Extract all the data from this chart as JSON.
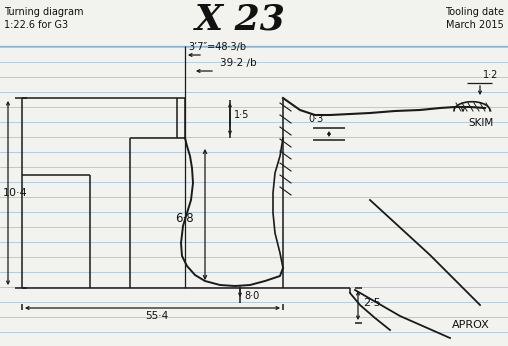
{
  "title": "X 23",
  "top_left_line1": "Turning diagram",
  "top_left_line2": "1:22.6 for G3",
  "top_right_line1": "Tooling date",
  "top_right_line2": "March 2015",
  "dim_37": "3’7″=48·3∕b",
  "dim_392": "39·2 ∕b",
  "dim_12": "1·2",
  "dim_03": "0·3",
  "dim_15": "1·5",
  "dim_68": "6·8",
  "dim_80": "8·0",
  "dim_25": "2·5",
  "dim_104": "10·4",
  "dim_554": "55·4",
  "label_skim": "SKIM",
  "label_aprox": "APROX",
  "bg_color": "#f2f2ee",
  "line_color": "#1a1a1a",
  "blue_line_color": "#7aa7cc",
  "text_color": "#111111"
}
